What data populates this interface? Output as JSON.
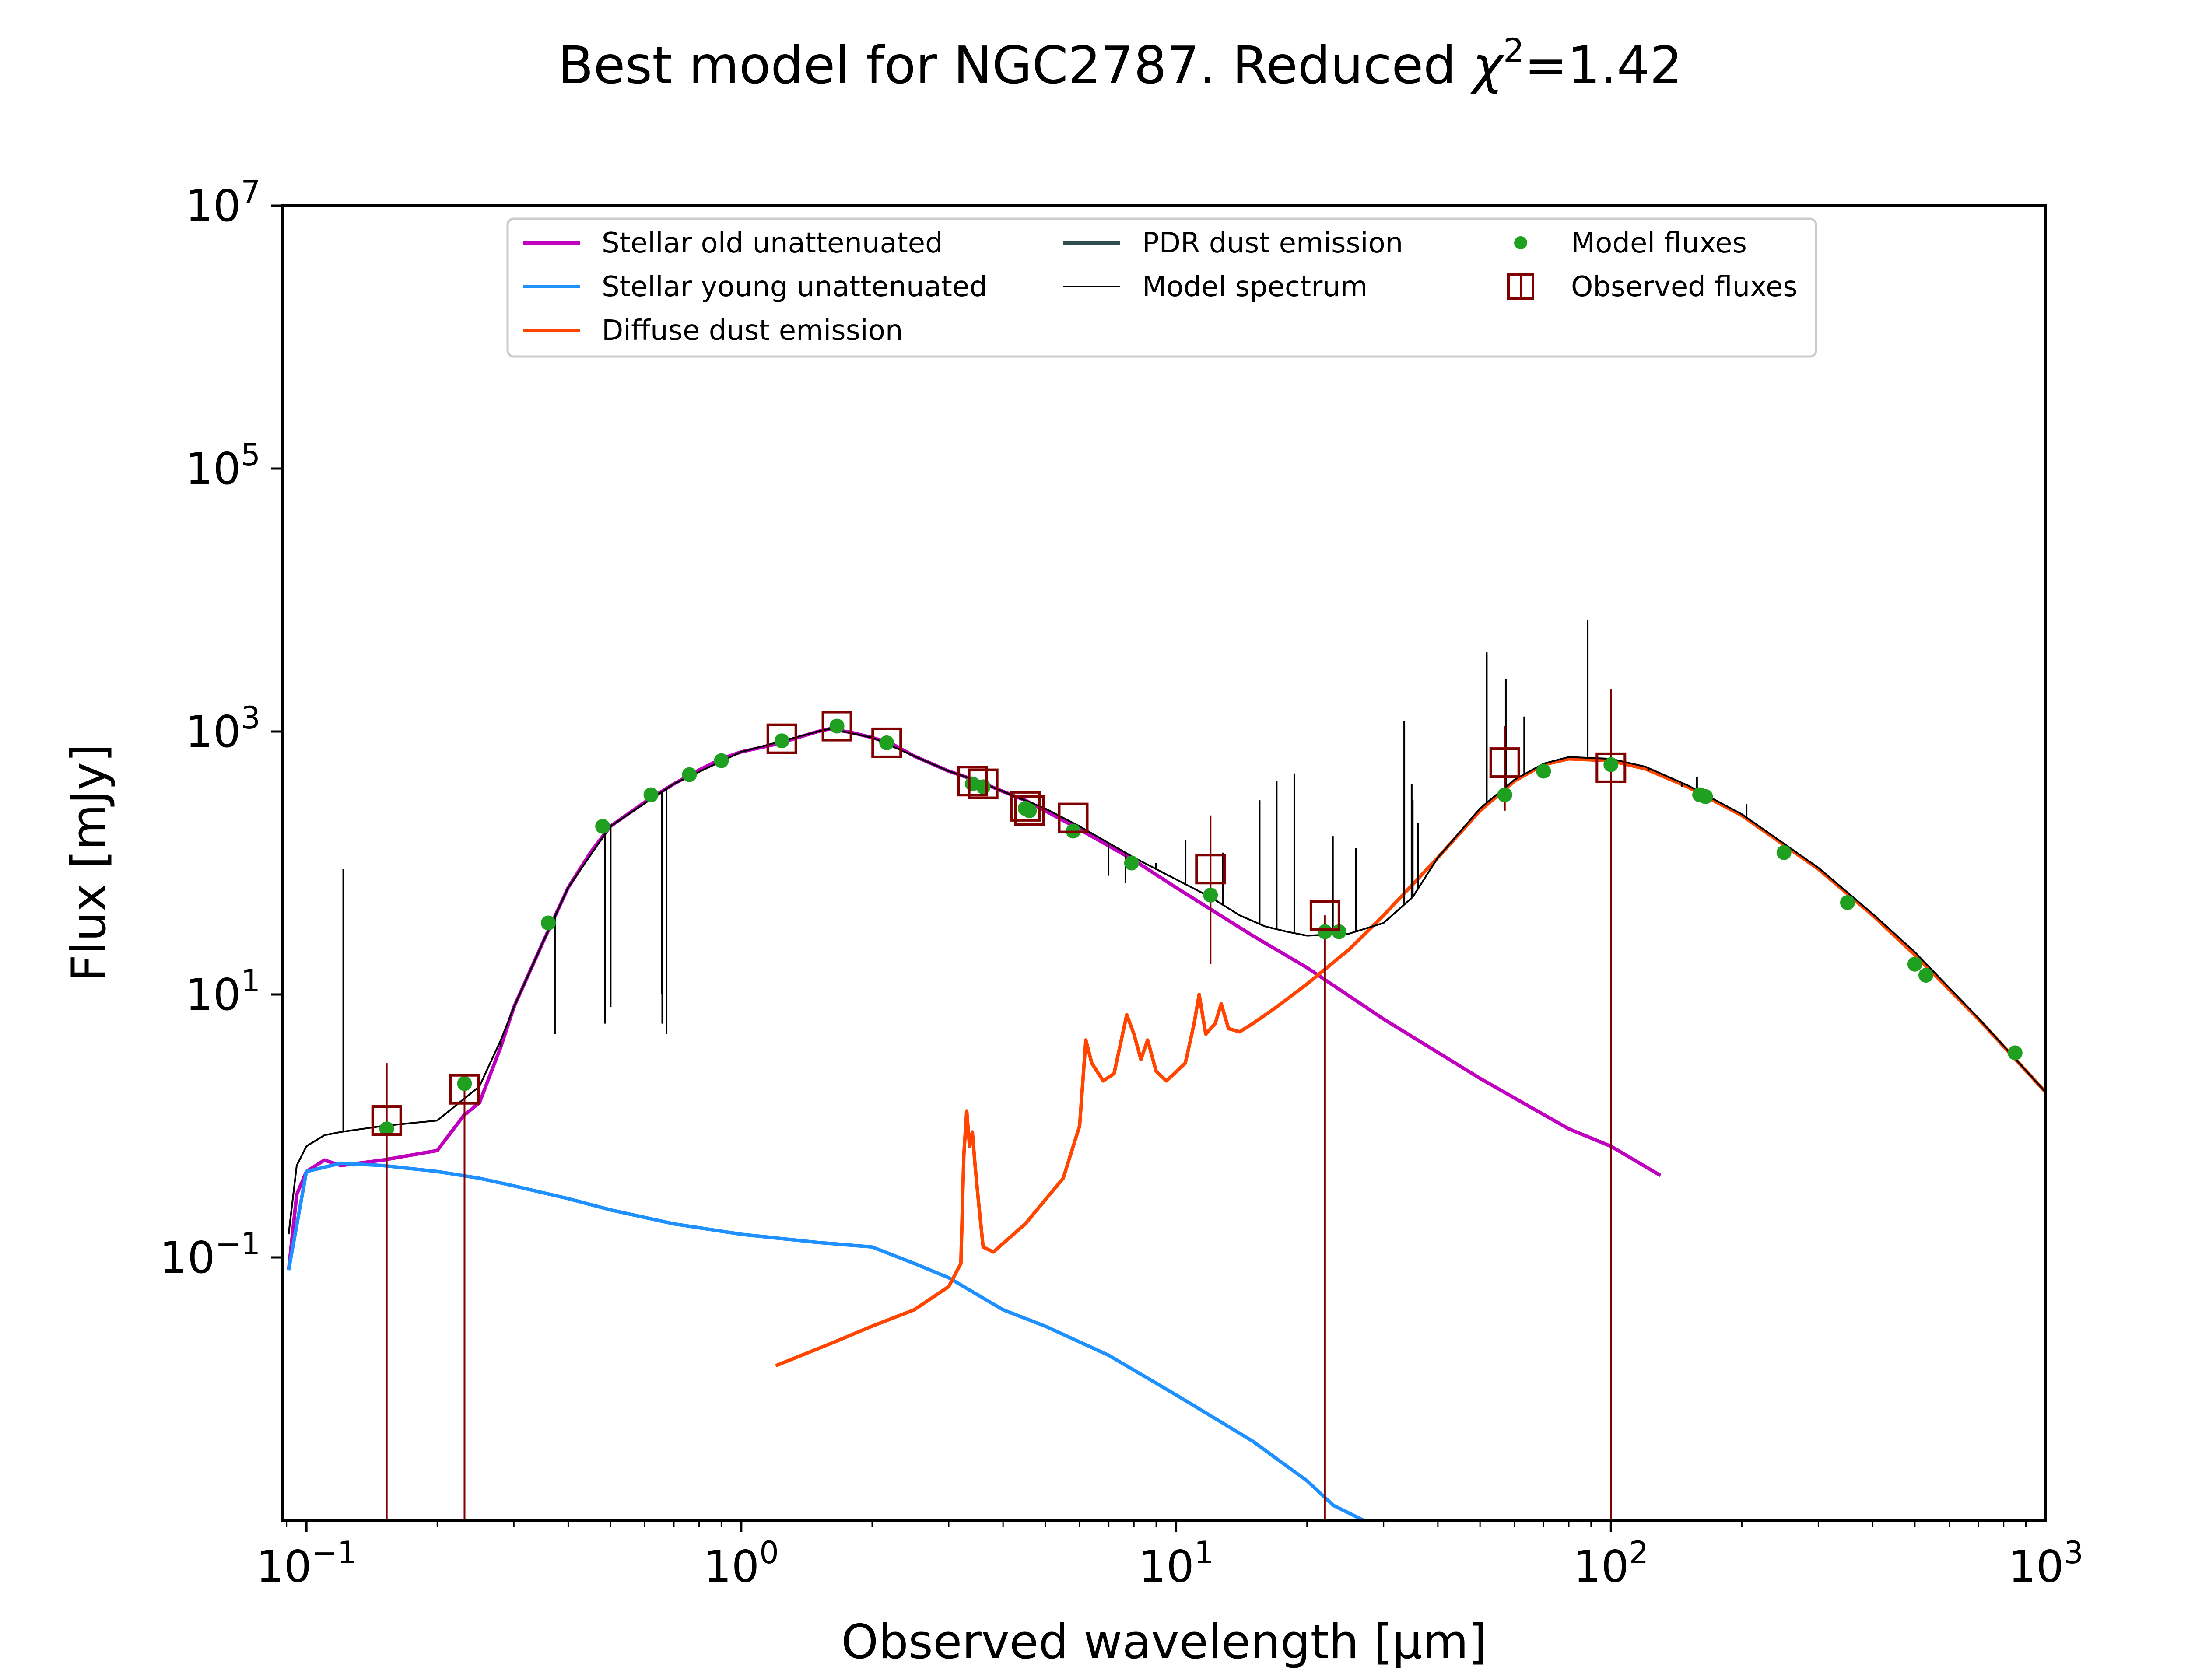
{
  "chart_data": {
    "type": "line",
    "title": "Best model for NGC2787. Reduced χ²=1.42",
    "title_main": "Best model for NGC2787. Reduced ",
    "title_chi": "χ",
    "title_sup": "2",
    "title_val": "=1.42",
    "xlabel": "Observed wavelength [μm]",
    "ylabel": "Flux [mJy]",
    "xscale": "log",
    "yscale": "log",
    "xlim": [
      0.088,
      1000
    ],
    "ylim": [
      0.001,
      10000000
    ],
    "grid": false,
    "legend_position": "top-center",
    "xticks": [
      {
        "value": 0.1,
        "base": "10",
        "exp": "−1"
      },
      {
        "value": 1,
        "base": "10",
        "exp": "0"
      },
      {
        "value": 10,
        "base": "10",
        "exp": "1"
      },
      {
        "value": 100,
        "base": "10",
        "exp": "2"
      },
      {
        "value": 1000,
        "base": "10",
        "exp": "3"
      }
    ],
    "yticks": [
      {
        "value": 0.1,
        "base": "10",
        "exp": "−1"
      },
      {
        "value": 10,
        "base": "10",
        "exp": "1"
      },
      {
        "value": 1000,
        "base": "10",
        "exp": "3"
      },
      {
        "value": 100000,
        "base": "10",
        "exp": "5"
      },
      {
        "value": 10000000,
        "base": "10",
        "exp": "7"
      }
    ],
    "legend": [
      {
        "label": "Stellar old unattenuated",
        "kind": "line",
        "color": "#bf00bf"
      },
      {
        "label": "Stellar young unattenuated",
        "kind": "line",
        "color": "#1e90ff"
      },
      {
        "label": "Diffuse dust emission",
        "kind": "line",
        "color": "#ff4500"
      },
      {
        "label": "PDR dust emission",
        "kind": "line",
        "color": "#2f4f4f"
      },
      {
        "label": "Model spectrum",
        "kind": "thinline",
        "color": "#000000"
      },
      {
        "label": "Model fluxes",
        "kind": "dot",
        "color": "#20a020"
      },
      {
        "label": "Observed fluxes",
        "kind": "square",
        "color": "#800000"
      }
    ],
    "series": [
      {
        "name": "Stellar old unattenuated",
        "color": "#bf00bf",
        "x": [
          0.091,
          0.095,
          0.1,
          0.11,
          0.12,
          0.15,
          0.2,
          0.23,
          0.25,
          0.28,
          0.3,
          0.35,
          0.4,
          0.45,
          0.5,
          0.6,
          0.7,
          0.8,
          0.9,
          1.0,
          1.2,
          1.5,
          1.6,
          1.8,
          2.0,
          2.2,
          2.5,
          3.0,
          3.5,
          4.0,
          4.5,
          5.0,
          6.0,
          8.0,
          10,
          15,
          20,
          30,
          50,
          80,
          100,
          130
        ],
        "y": [
          0.08,
          0.3,
          0.45,
          0.55,
          0.5,
          0.55,
          0.65,
          1.2,
          1.5,
          4,
          8,
          25,
          65,
          120,
          190,
          290,
          400,
          510,
          620,
          700,
          800,
          1000,
          1050,
          980,
          900,
          820,
          650,
          500,
          420,
          350,
          300,
          250,
          180,
          105,
          65,
          28,
          16,
          6.5,
          2.3,
          0.95,
          0.7,
          0.42
        ]
      },
      {
        "name": "Stellar young unattenuated",
        "color": "#1e90ff",
        "x": [
          0.091,
          0.1,
          0.12,
          0.15,
          0.2,
          0.25,
          0.3,
          0.4,
          0.5,
          0.7,
          1.0,
          1.5,
          2.0,
          2.5,
          3.0,
          4.0,
          5.0,
          7.0,
          10,
          15,
          20,
          23,
          27
        ],
        "y": [
          0.08,
          0.45,
          0.52,
          0.5,
          0.45,
          0.4,
          0.35,
          0.28,
          0.23,
          0.18,
          0.15,
          0.13,
          0.12,
          0.09,
          0.07,
          0.04,
          0.03,
          0.018,
          0.009,
          0.004,
          0.002,
          0.0013,
          0.001
        ]
      },
      {
        "name": "Diffuse dust emission",
        "color": "#ff4500",
        "x": [
          1.2,
          1.6,
          2.0,
          2.5,
          3.0,
          3.2,
          3.25,
          3.3,
          3.35,
          3.4,
          3.45,
          3.5,
          3.6,
          3.8,
          4.5,
          5.5,
          6.0,
          6.2,
          6.4,
          6.8,
          7.2,
          7.7,
          8.0,
          8.3,
          8.6,
          9.0,
          9.5,
          10.5,
          11.0,
          11.3,
          11.7,
          12.3,
          12.7,
          13.2,
          14,
          15,
          17,
          20,
          25,
          30,
          40,
          50,
          60,
          70,
          80,
          100,
          120,
          150,
          200,
          300,
          400,
          500,
          700,
          1000
        ],
        "y": [
          0.015,
          0.022,
          0.03,
          0.04,
          0.06,
          0.09,
          0.6,
          1.3,
          0.7,
          0.9,
          0.5,
          0.3,
          0.12,
          0.11,
          0.18,
          0.4,
          1.0,
          4.5,
          3.0,
          2.2,
          2.5,
          7.0,
          5.0,
          3.2,
          4.5,
          2.6,
          2.2,
          3.0,
          6.0,
          10.0,
          5.0,
          6.0,
          8.5,
          5.5,
          5.2,
          6.0,
          8.0,
          12,
          22,
          40,
          110,
          250,
          420,
          560,
          620,
          600,
          520,
          380,
          230,
          90,
          40,
          20,
          6.5,
          1.8
        ]
      },
      {
        "name": "Model spectrum",
        "color": "#000000",
        "x": [
          0.091,
          0.095,
          0.1,
          0.11,
          0.12,
          0.15,
          0.2,
          0.23,
          0.25,
          0.28,
          0.3,
          0.35,
          0.4,
          0.5,
          0.7,
          1.0,
          1.5,
          1.6,
          2.0,
          2.5,
          3.0,
          3.5,
          4.0,
          5.0,
          6.0,
          8.0,
          10,
          12,
          14,
          16,
          18,
          20,
          25,
          30,
          35,
          40,
          50,
          60,
          70,
          80,
          100,
          120,
          150,
          200,
          300,
          400,
          500,
          700,
          1000
        ],
        "y": [
          0.15,
          0.5,
          0.7,
          0.85,
          0.9,
          1.0,
          1.1,
          1.6,
          2.0,
          4.5,
          8,
          25,
          65,
          190,
          400,
          700,
          1000,
          1050,
          900,
          650,
          500,
          420,
          350,
          260,
          190,
          110,
          75,
          55,
          40,
          33,
          30,
          28,
          29,
          35,
          55,
          110,
          260,
          430,
          570,
          640,
          620,
          540,
          390,
          235,
          92,
          41,
          21,
          6.6,
          1.8
        ]
      },
      {
        "name": "Emission lines",
        "color": "#000000",
        "x": [
          0.1216,
          0.2798,
          0.3727,
          0.4861,
          0.5007,
          0.6563,
          0.6584,
          0.6731,
          6.99,
          7.65,
          8.99,
          10.51,
          12.81,
          15.56,
          17.03,
          18.71,
          22.93,
          25.89,
          33.48,
          34.81,
          35.0,
          36.0,
          51.8,
          57.3,
          63.2,
          88.4,
          121.9,
          145.5,
          157.7,
          205.0
        ],
        "y": [
          90,
          4,
          5,
          6,
          8,
          10,
          6,
          5,
          80,
          70,
          100,
          150,
          120,
          300,
          420,
          480,
          160,
          130,
          1200,
          400,
          300,
          200,
          4000,
          2500,
          1300,
          7000,
          500,
          380,
          450,
          280
        ]
      }
    ],
    "model_fluxes": {
      "color": "#20a020",
      "x": [
        0.153,
        0.231,
        0.36,
        0.48,
        0.62,
        0.76,
        0.9,
        1.24,
        1.66,
        2.16,
        3.4,
        3.6,
        4.5,
        4.6,
        5.8,
        7.9,
        12,
        22,
        23.7,
        57,
        70,
        100,
        160,
        165,
        250,
        350,
        500,
        530,
        850
      ],
      "y": [
        0.95,
        2.1,
        35,
        190,
        330,
        470,
        600,
        850,
        1100,
        820,
        400,
        380,
        260,
        250,
        175,
        100,
        57,
        30,
        30,
        330,
        500,
        560,
        330,
        320,
        120,
        50,
        17,
        14,
        3.6
      ]
    },
    "observed_fluxes": {
      "color": "#800000",
      "x": [
        0.153,
        0.231,
        1.24,
        1.66,
        2.16,
        3.4,
        3.6,
        4.5,
        4.6,
        5.8,
        12,
        22,
        57,
        100
      ],
      "y": [
        1.1,
        1.9,
        880,
        1100,
        820,
        420,
        400,
        270,
        250,
        220,
        90,
        40,
        580,
        530
      ],
      "err_low": [
        0.001,
        0.001,
        0,
        0,
        0,
        0,
        0,
        0,
        0,
        0,
        17,
        0.001,
        250,
        0.001
      ],
      "err_high": [
        3.0,
        0,
        0,
        0,
        0,
        0,
        0,
        0,
        0,
        0,
        230,
        0,
        1100,
        2100
      ]
    }
  }
}
